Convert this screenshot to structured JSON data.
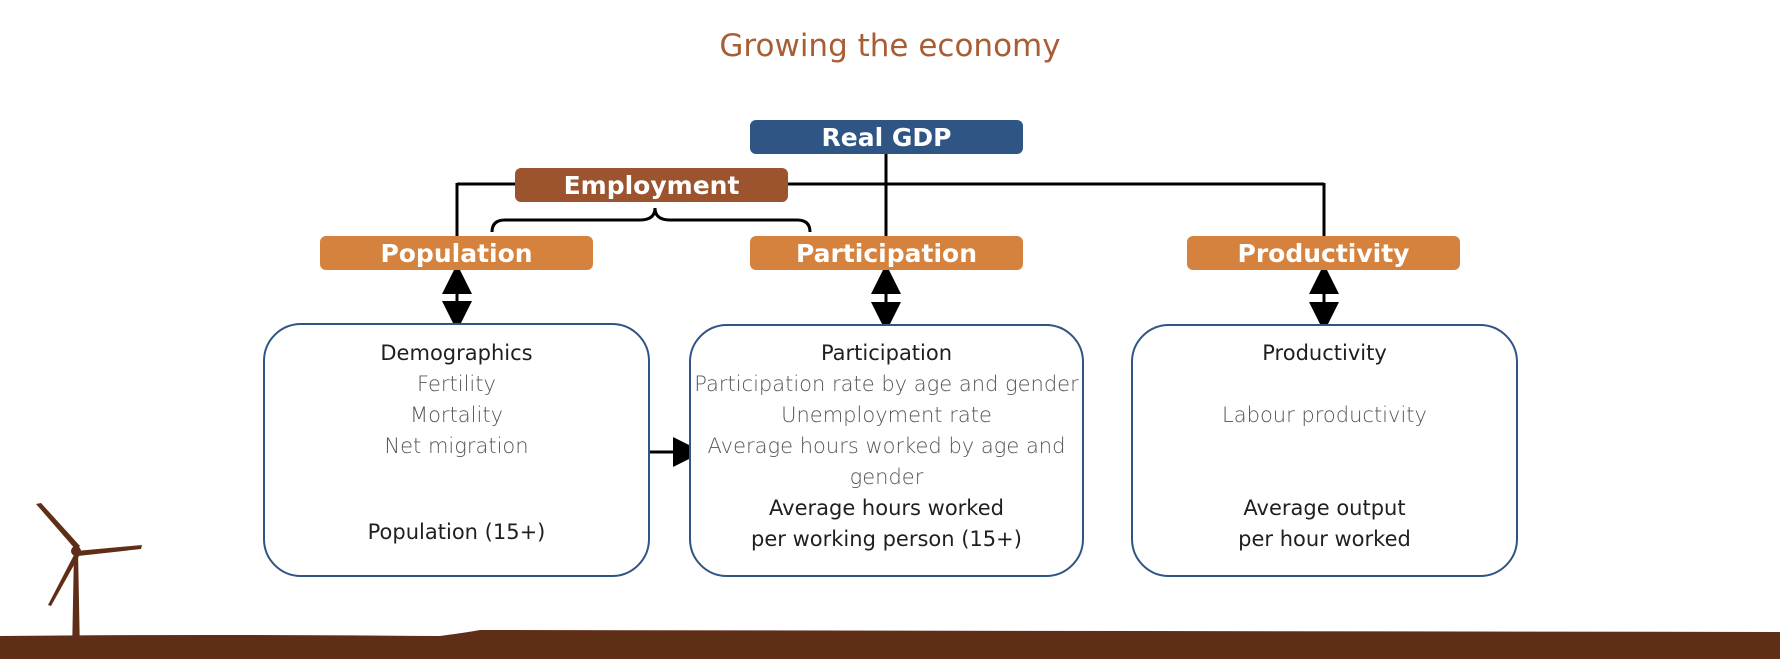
{
  "title": "Growing the economy",
  "top": "Real GDP",
  "employment": "Employment",
  "drivers": {
    "population": "Population",
    "participation": "Participation",
    "productivity": "Productivity"
  },
  "boxes": {
    "population": {
      "heading": "Demographics",
      "items": [
        "Fertility",
        "Mortality",
        "Net migration"
      ],
      "footer": [
        "Population (15+)"
      ]
    },
    "participation": {
      "heading": "Participation",
      "items": [
        "Participation rate by age and gender",
        "Unemployment rate",
        "Average hours worked by age and",
        "gender"
      ],
      "footer": [
        "Average hours worked",
        "per working person (15+)"
      ]
    },
    "productivity": {
      "heading": "Productivity",
      "items": [
        "Labour productivity"
      ],
      "footer": [
        "Average output",
        "per hour worked"
      ]
    }
  },
  "colors": {
    "gdp": "#2e5584",
    "employment": "#9b542e",
    "driver": "#d4823d",
    "title": "#a85e35",
    "ground": "#5f2e17"
  }
}
